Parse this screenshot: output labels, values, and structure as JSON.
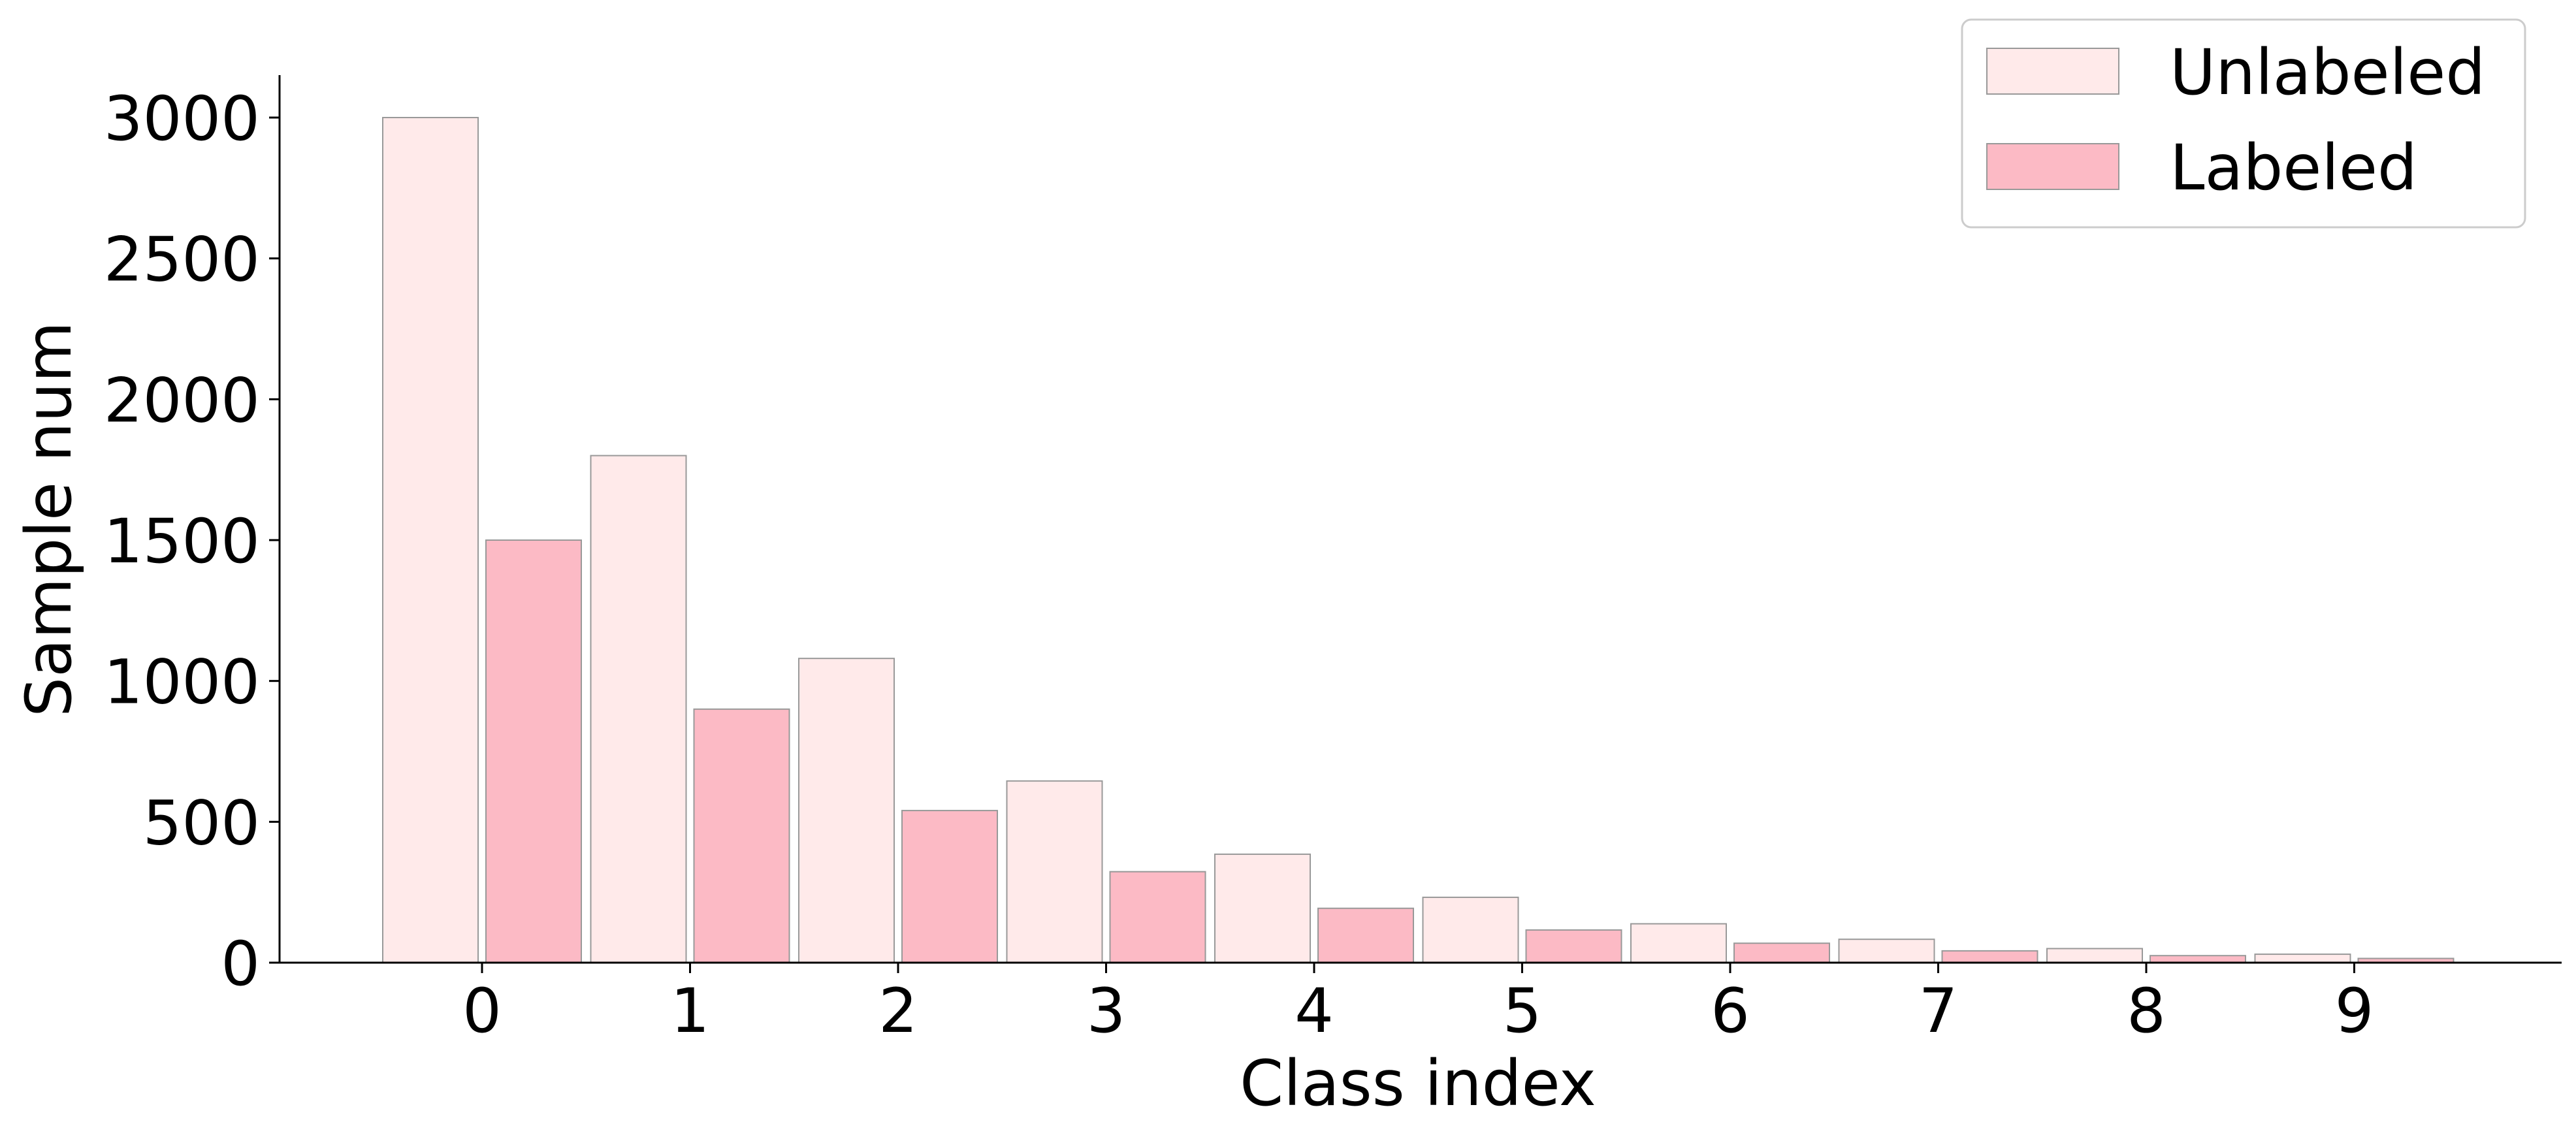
{
  "chart_data": {
    "type": "bar",
    "xlabel": "Class index",
    "ylabel": "Sample num",
    "categories": [
      "0",
      "1",
      "2",
      "3",
      "4",
      "5",
      "6",
      "7",
      "8",
      "9"
    ],
    "ylim": [
      0,
      3150
    ],
    "yticks": [
      0,
      500,
      1000,
      1500,
      2000,
      2500,
      3000
    ],
    "grid": false,
    "legend_position": "top-right",
    "series": [
      {
        "name": "Unlabeled",
        "color": "#ffeaea",
        "values": [
          3000,
          1800,
          1080,
          645,
          385,
          232,
          138,
          83,
          50,
          30
        ]
      },
      {
        "name": "Labeled",
        "color": "#fcbac5",
        "values": [
          1500,
          900,
          540,
          323,
          193,
          116,
          69,
          42,
          25,
          15
        ]
      }
    ]
  }
}
